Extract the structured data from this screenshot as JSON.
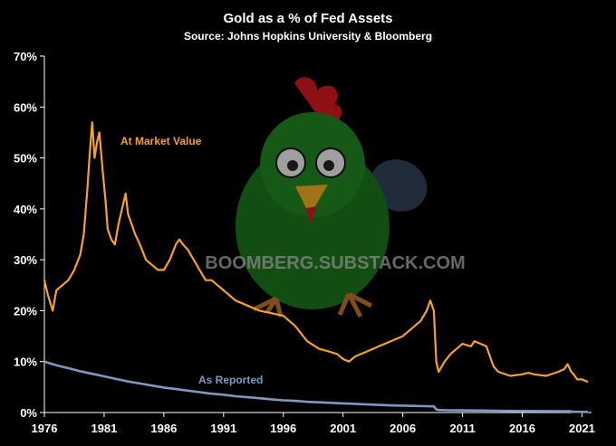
{
  "chart_data": {
    "type": "line",
    "title": "Gold as a % of Fed Assets",
    "subtitle": "Source: Johns Hopkins University & Bloomberg",
    "watermark": "BOOMBERG.SUBSTACK.COM",
    "watermark_icon": "rooster-mascot-icon",
    "xlim": [
      1976,
      2021.8
    ],
    "ylim": [
      0,
      70
    ],
    "x_ticks": [
      1976,
      1981,
      1986,
      1991,
      1996,
      2001,
      2006,
      2011,
      2016,
      2021
    ],
    "y_ticks": [
      {
        "value": 0,
        "label": "0%"
      },
      {
        "value": 10,
        "label": "10%"
      },
      {
        "value": 20,
        "label": "20%"
      },
      {
        "value": 30,
        "label": "30%"
      },
      {
        "value": 40,
        "label": "40%"
      },
      {
        "value": 50,
        "label": "50%"
      },
      {
        "value": 60,
        "label": "60%"
      },
      {
        "value": 70,
        "label": "70%"
      }
    ],
    "grid": false,
    "series": [
      {
        "name": "At Market Value",
        "color": "#f5a030",
        "x": [
          1976.0,
          1976.3,
          1976.7,
          1977.0,
          1977.5,
          1978.0,
          1978.5,
          1979.0,
          1979.3,
          1979.6,
          1979.8,
          1980.0,
          1980.2,
          1980.4,
          1980.6,
          1980.9,
          1981.1,
          1981.3,
          1981.6,
          1981.9,
          1982.2,
          1982.5,
          1982.8,
          1983.0,
          1983.3,
          1983.6,
          1984.0,
          1984.5,
          1985.0,
          1985.5,
          1986.0,
          1986.5,
          1987.0,
          1987.3,
          1987.6,
          1988.0,
          1988.5,
          1989.0,
          1989.5,
          1990.0,
          1990.5,
          1991.0,
          1991.5,
          1992.0,
          1993.0,
          1994.0,
          1995.0,
          1996.0,
          1997.0,
          1997.5,
          1998.0,
          1999.0,
          1999.8,
          2000.5,
          2001.0,
          2001.5,
          2002.0,
          2003.0,
          2004.0,
          2005.0,
          2006.0,
          2006.5,
          2007.0,
          2007.5,
          2008.0,
          2008.3,
          2008.6,
          2008.8,
          2009.0,
          2009.5,
          2010.0,
          2010.5,
          2011.0,
          2011.7,
          2012.0,
          2012.5,
          2013.0,
          2013.3,
          2013.6,
          2014.0,
          2015.0,
          2016.0,
          2016.5,
          2017.0,
          2018.0,
          2019.0,
          2019.5,
          2019.8,
          2020.1,
          2020.3,
          2020.6,
          2021.0,
          2021.5
        ],
        "values": [
          26,
          23,
          20,
          24,
          25,
          26,
          28,
          31,
          35,
          44,
          51,
          57,
          50,
          53,
          55,
          47,
          42,
          36,
          34,
          33,
          37,
          40,
          43,
          39,
          37,
          35,
          33,
          30,
          29,
          28,
          28,
          30,
          33,
          34,
          33,
          32,
          30,
          28,
          26,
          26,
          25,
          24,
          23,
          22,
          21,
          20,
          19.5,
          19,
          17,
          15.5,
          14,
          12.5,
          12,
          11.5,
          10.5,
          10,
          11,
          12,
          13,
          14,
          15,
          16,
          17,
          18,
          20,
          22,
          20,
          10,
          8,
          10,
          11.5,
          12.5,
          13.5,
          13,
          14,
          13.5,
          13,
          11,
          9,
          8,
          7.2,
          7.5,
          7.8,
          7.5,
          7.2,
          8,
          8.5,
          9.5,
          8,
          7.5,
          6.5,
          6.5,
          6
        ]
      },
      {
        "name": "As Reported",
        "color": "#7f97c2",
        "x": [
          1976.0,
          1977.0,
          1978.0,
          1979.0,
          1980.0,
          1981.0,
          1982.0,
          1983.0,
          1984.0,
          1985.0,
          1986.0,
          1987.0,
          1988.0,
          1989.0,
          1990.0,
          1991.0,
          1992.0,
          1993.0,
          1994.0,
          1995.0,
          1996.0,
          1997.0,
          1998.0,
          1999.0,
          2000.0,
          2001.0,
          2002.0,
          2003.0,
          2004.0,
          2005.0,
          2006.0,
          2007.0,
          2008.0,
          2008.6,
          2008.8,
          2009.0,
          2010.0,
          2012.0,
          2014.0,
          2016.0,
          2018.0,
          2020.0,
          2020.3,
          2021.5
        ],
        "values": [
          10,
          9.3,
          8.7,
          8.1,
          7.6,
          7.1,
          6.6,
          6.1,
          5.7,
          5.3,
          4.9,
          4.6,
          4.3,
          4.0,
          3.7,
          3.5,
          3.2,
          3.0,
          2.8,
          2.6,
          2.4,
          2.3,
          2.1,
          2.0,
          1.9,
          1.8,
          1.7,
          1.6,
          1.5,
          1.4,
          1.35,
          1.3,
          1.25,
          1.2,
          0.6,
          0.5,
          0.45,
          0.4,
          0.35,
          0.3,
          0.28,
          0.25,
          0.15,
          0.12
        ]
      }
    ]
  }
}
